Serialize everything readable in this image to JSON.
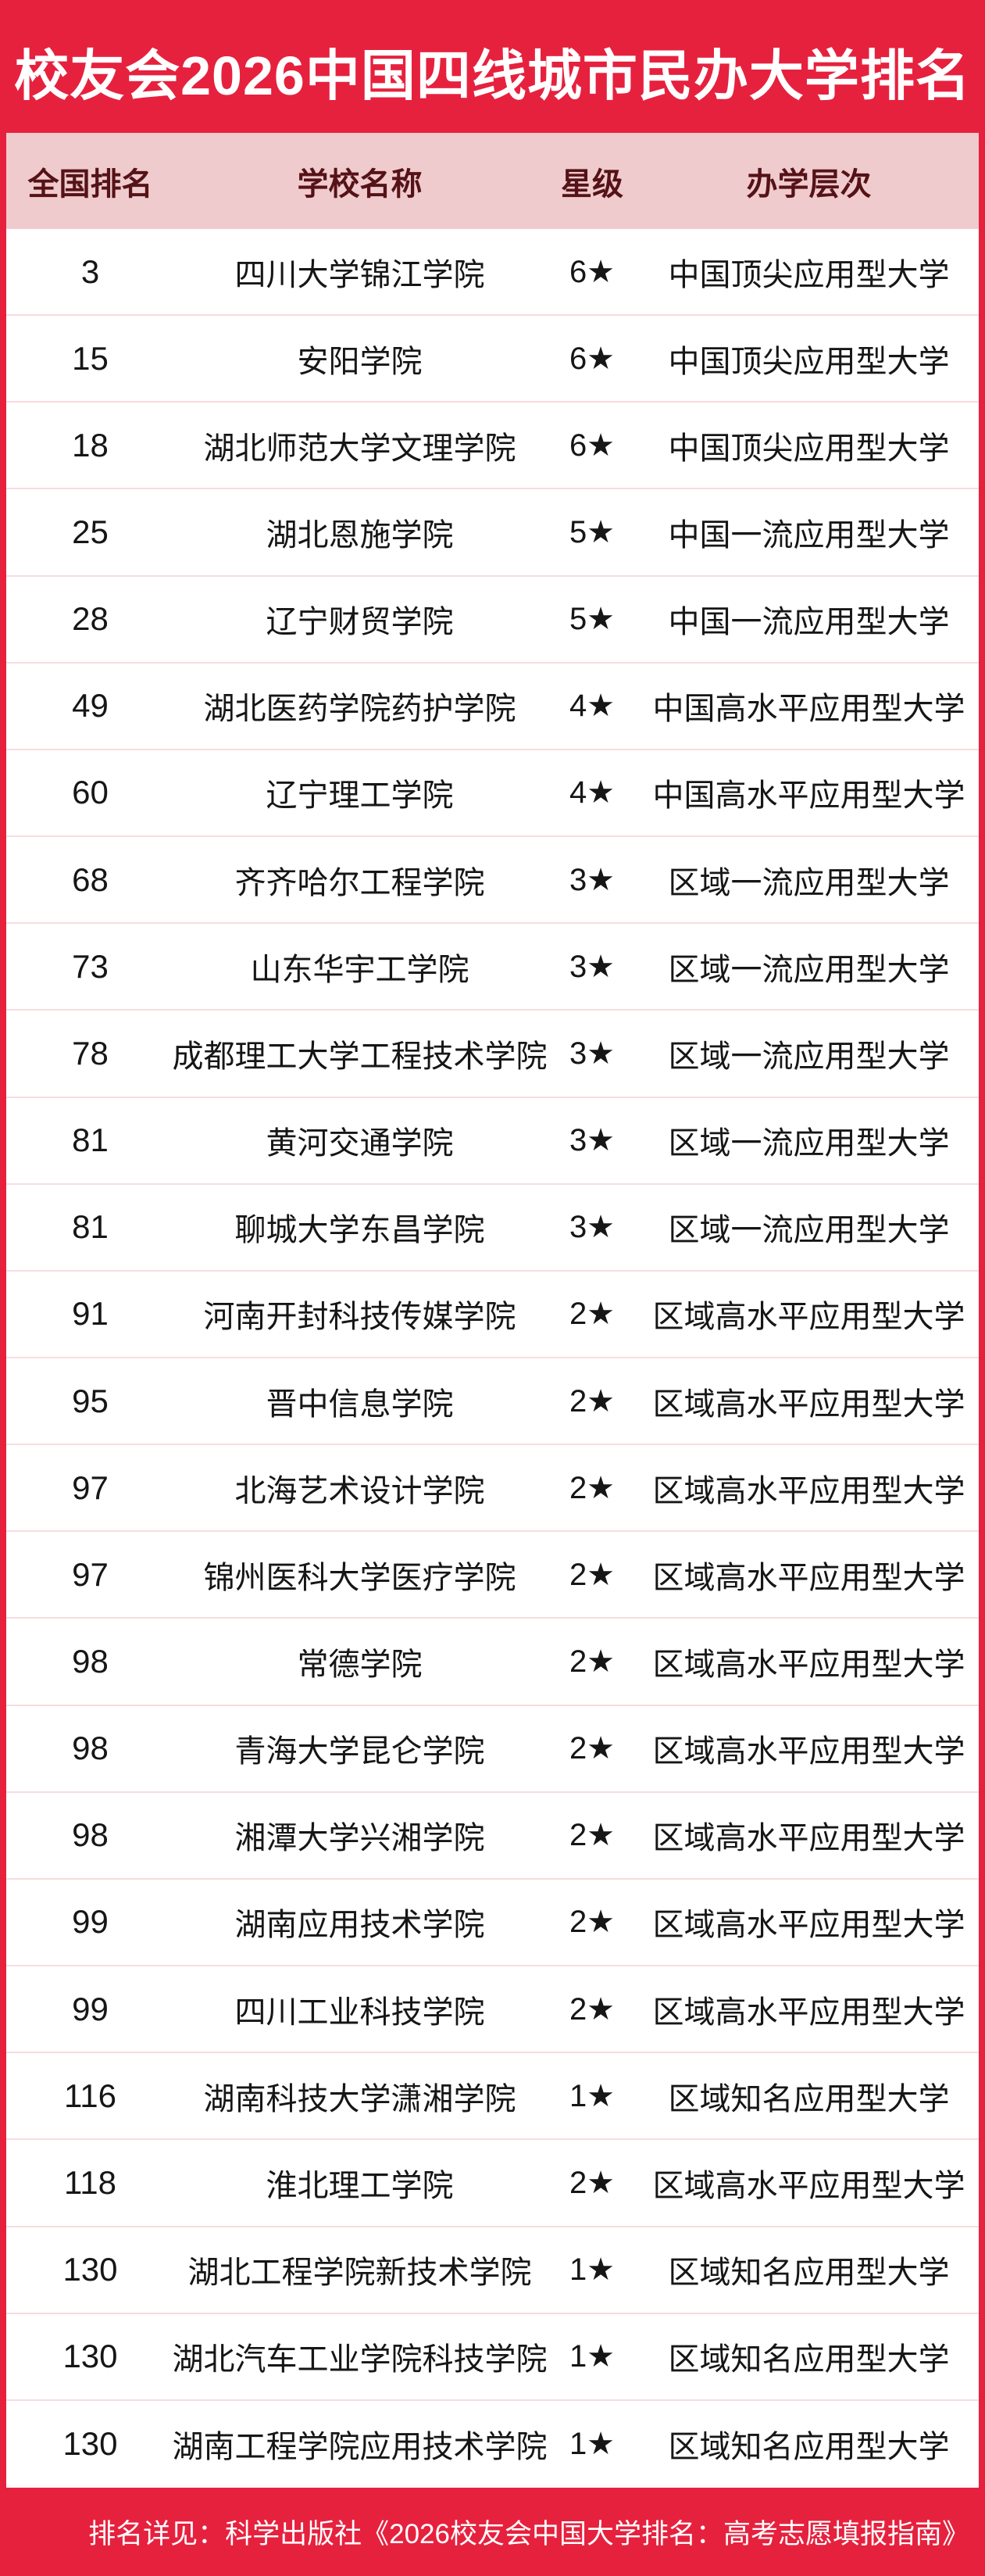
{
  "title": "校友会2026中国四线城市民办大学排名",
  "colors": {
    "background_red": "#e6213e",
    "header_pink": "#f0cbcd",
    "header_text_maroon": "#551317",
    "row_separator": "#f8dcde",
    "title_text": "#ffffff",
    "row_text": "#161616"
  },
  "table": {
    "headers": [
      "全国排名",
      "学校名称",
      "星级",
      "办学层次"
    ],
    "rows": [
      {
        "rank": "3",
        "school": "四川大学锦江学院",
        "stars": "6★",
        "level": "中国顶尖应用型大学"
      },
      {
        "rank": "15",
        "school": "安阳学院",
        "stars": "6★",
        "level": "中国顶尖应用型大学"
      },
      {
        "rank": "18",
        "school": "湖北师范大学文理学院",
        "stars": "6★",
        "level": "中国顶尖应用型大学"
      },
      {
        "rank": "25",
        "school": "湖北恩施学院",
        "stars": "5★",
        "level": "中国一流应用型大学"
      },
      {
        "rank": "28",
        "school": "辽宁财贸学院",
        "stars": "5★",
        "level": "中国一流应用型大学"
      },
      {
        "rank": "49",
        "school": "湖北医药学院药护学院",
        "stars": "4★",
        "level": "中国高水平应用型大学"
      },
      {
        "rank": "60",
        "school": "辽宁理工学院",
        "stars": "4★",
        "level": "中国高水平应用型大学"
      },
      {
        "rank": "68",
        "school": "齐齐哈尔工程学院",
        "stars": "3★",
        "level": "区域一流应用型大学"
      },
      {
        "rank": "73",
        "school": "山东华宇工学院",
        "stars": "3★",
        "level": "区域一流应用型大学"
      },
      {
        "rank": "78",
        "school": "成都理工大学工程技术学院",
        "stars": "3★",
        "level": "区域一流应用型大学"
      },
      {
        "rank": "81",
        "school": "黄河交通学院",
        "stars": "3★",
        "level": "区域一流应用型大学"
      },
      {
        "rank": "81",
        "school": "聊城大学东昌学院",
        "stars": "3★",
        "level": "区域一流应用型大学"
      },
      {
        "rank": "91",
        "school": "河南开封科技传媒学院",
        "stars": "2★",
        "level": "区域高水平应用型大学"
      },
      {
        "rank": "95",
        "school": "晋中信息学院",
        "stars": "2★",
        "level": "区域高水平应用型大学"
      },
      {
        "rank": "97",
        "school": "北海艺术设计学院",
        "stars": "2★",
        "level": "区域高水平应用型大学"
      },
      {
        "rank": "97",
        "school": "锦州医科大学医疗学院",
        "stars": "2★",
        "level": "区域高水平应用型大学"
      },
      {
        "rank": "98",
        "school": "常德学院",
        "stars": "2★",
        "level": "区域高水平应用型大学"
      },
      {
        "rank": "98",
        "school": "青海大学昆仑学院",
        "stars": "2★",
        "level": "区域高水平应用型大学"
      },
      {
        "rank": "98",
        "school": "湘潭大学兴湘学院",
        "stars": "2★",
        "level": "区域高水平应用型大学"
      },
      {
        "rank": "99",
        "school": "湖南应用技术学院",
        "stars": "2★",
        "level": "区域高水平应用型大学"
      },
      {
        "rank": "99",
        "school": "四川工业科技学院",
        "stars": "2★",
        "level": "区域高水平应用型大学"
      },
      {
        "rank": "116",
        "school": "湖南科技大学潇湘学院",
        "stars": "1★",
        "level": "区域知名应用型大学"
      },
      {
        "rank": "118",
        "school": "淮北理工学院",
        "stars": "2★",
        "level": "区域高水平应用型大学"
      },
      {
        "rank": "130",
        "school": "湖北工程学院新技术学院",
        "stars": "1★",
        "level": "区域知名应用型大学"
      },
      {
        "rank": "130",
        "school": "湖北汽车工业学院科技学院",
        "stars": "1★",
        "level": "区域知名应用型大学"
      },
      {
        "rank": "130",
        "school": "湖南工程学院应用技术学院",
        "stars": "1★",
        "level": "区域知名应用型大学"
      }
    ]
  },
  "footer": {
    "note": "排名详见：科学出版社《2026校友会中国大学排名：高考志愿填报指南》"
  }
}
